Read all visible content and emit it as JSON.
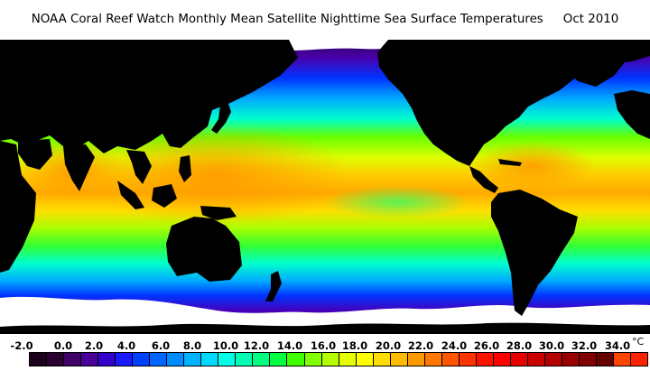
{
  "title": {
    "main": "NOAA Coral Reef Watch Monthly Mean Satellite Nighttime Sea Surface Temperatures",
    "date": "Oct 2010"
  },
  "legend": {
    "unit": "°C",
    "labels": [
      "-2.0",
      "0.0",
      "2.0",
      "4.0",
      "6.0",
      "8.0",
      "10.0",
      "12.0",
      "14.0",
      "16.0",
      "18.0",
      "20.0",
      "22.0",
      "24.0",
      "26.0",
      "28.0",
      "30.0",
      "32.0",
      "34.0"
    ],
    "colors": [
      "#1a001a",
      "#2a0033",
      "#3d0066",
      "#4b0099",
      "#3300cc",
      "#1a1aff",
      "#0040ff",
      "#0066ff",
      "#008cff",
      "#00b3ff",
      "#00d9ff",
      "#00ffe6",
      "#00ffb3",
      "#00ff80",
      "#00ff40",
      "#40ff00",
      "#80ff00",
      "#b3ff00",
      "#e6ff00",
      "#ffff00",
      "#ffdd00",
      "#ffbb00",
      "#ff9900",
      "#ff7700",
      "#ff5500",
      "#ff3300",
      "#ff1100",
      "#ff0000",
      "#e60000",
      "#cc0000",
      "#b30000",
      "#990000",
      "#800000",
      "#660000",
      "#ff4400",
      "#ff2200"
    ]
  },
  "map": {
    "projection": "equirectangular",
    "land_color": "#000000",
    "ice_color": "#ffffff"
  }
}
